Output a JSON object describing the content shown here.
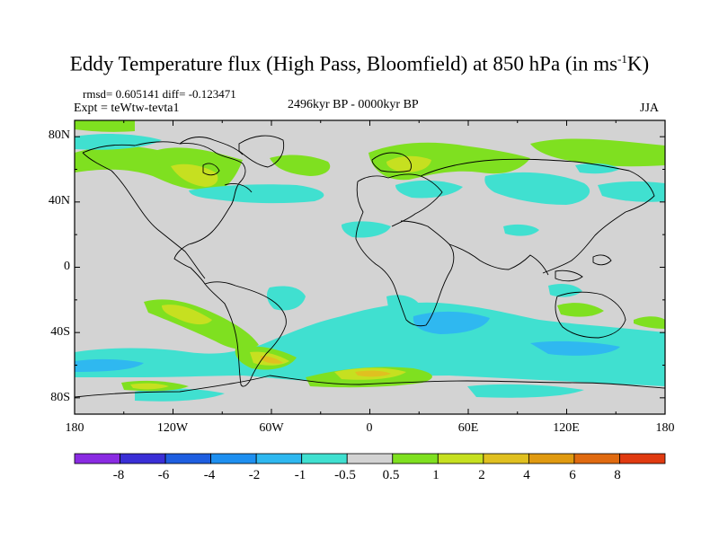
{
  "title": {
    "main": "Eddy Temperature flux (High Pass, Bloomfield) at 850 hPa (in ms",
    "sup": "-1",
    "tail": "K)"
  },
  "stats": {
    "rmsd_diff": "rmsd= 0.605141 diff= -0.123471",
    "expt": "Expt = teWtw-tevta1",
    "period": "2496kyr BP - 0000kyr BP",
    "season": "JJA"
  },
  "map": {
    "lat_ticks": [
      "80N",
      "40N",
      "0",
      "40S",
      "80S"
    ],
    "lon_ticks": [
      "180",
      "120W",
      "60W",
      "0",
      "60E",
      "120E",
      "180"
    ],
    "background_color": "#d3d3d3"
  },
  "colorbar": {
    "colors": [
      "#8a2be2",
      "#3a2fd6",
      "#1e5ee0",
      "#1e8ff0",
      "#2fb8f0",
      "#40e0d0",
      "#d3d3d3",
      "#7fe020",
      "#c6e020",
      "#e0c020",
      "#e09a10",
      "#e06a10",
      "#e03a10"
    ],
    "labels": [
      "-8",
      "-6",
      "-4",
      "-2",
      "-1",
      "-0.5",
      "0.5",
      "1",
      "2",
      "4",
      "6",
      "8"
    ]
  }
}
